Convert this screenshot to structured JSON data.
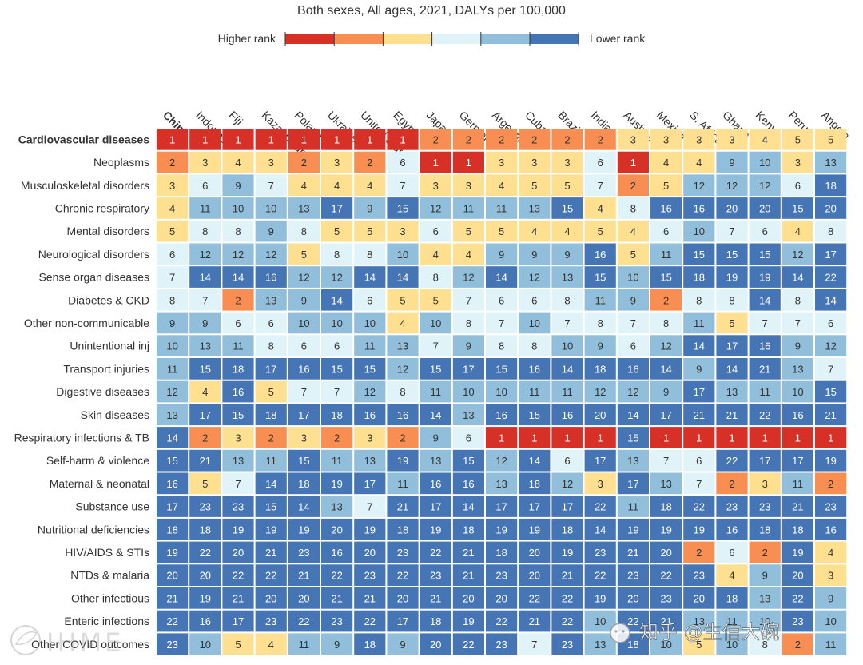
{
  "chart_data": {
    "type": "heatmap",
    "title": "Both sexes, All ages, 2021, DALYs per 100,000",
    "legend": {
      "left_label": "Higher rank",
      "right_label": "Lower rank",
      "colors": [
        "#d73027",
        "#f98e52",
        "#fee090",
        "#e0f3f8",
        "#91bfdb",
        "#4575b4"
      ]
    },
    "columns": [
      "China",
      "Indonesia",
      "Fiji",
      "Kazakhstan",
      "Poland",
      "Ukraine",
      "United States",
      "Egypt",
      "Japan",
      "Germany",
      "Argentina",
      "Cuba",
      "Brazil",
      "India",
      "Australia",
      "Mexico",
      "S. Africa",
      "Ghana",
      "Kenya",
      "Peru",
      "Angola"
    ],
    "highlight_column": "China",
    "highlight_row": "Cardiovascular diseases",
    "rows": [
      {
        "label": "Cardiovascular diseases",
        "values": [
          1,
          1,
          1,
          1,
          1,
          1,
          1,
          1,
          2,
          2,
          2,
          2,
          2,
          2,
          3,
          3,
          3,
          3,
          4,
          5,
          5
        ]
      },
      {
        "label": "Neoplasms",
        "values": [
          2,
          3,
          4,
          3,
          2,
          3,
          2,
          6,
          1,
          1,
          3,
          3,
          3,
          6,
          1,
          4,
          4,
          9,
          10,
          3,
          13
        ]
      },
      {
        "label": "Musculoskeletal disorders",
        "values": [
          3,
          6,
          9,
          7,
          4,
          4,
          4,
          7,
          3,
          3,
          4,
          5,
          5,
          7,
          2,
          5,
          12,
          12,
          12,
          6,
          18
        ]
      },
      {
        "label": "Chronic respiratory",
        "values": [
          4,
          11,
          10,
          10,
          13,
          17,
          9,
          15,
          12,
          11,
          11,
          13,
          15,
          4,
          8,
          16,
          16,
          20,
          20,
          15,
          20
        ]
      },
      {
        "label": "Mental disorders",
        "values": [
          5,
          8,
          8,
          9,
          8,
          5,
          5,
          3,
          6,
          5,
          5,
          4,
          4,
          5,
          4,
          6,
          10,
          7,
          6,
          4,
          8
        ]
      },
      {
        "label": "Neurological disorders",
        "values": [
          6,
          12,
          12,
          12,
          5,
          8,
          8,
          10,
          4,
          4,
          9,
          9,
          9,
          16,
          5,
          11,
          15,
          15,
          15,
          12,
          17
        ]
      },
      {
        "label": "Sense organ diseases",
        "values": [
          7,
          14,
          14,
          16,
          12,
          12,
          14,
          14,
          8,
          12,
          14,
          12,
          13,
          15,
          10,
          15,
          18,
          19,
          19,
          14,
          22
        ]
      },
      {
        "label": "Diabetes & CKD",
        "values": [
          8,
          7,
          2,
          13,
          9,
          14,
          6,
          5,
          5,
          7,
          6,
          6,
          8,
          11,
          9,
          2,
          8,
          8,
          14,
          8,
          14
        ]
      },
      {
        "label": "Other non-communicable",
        "values": [
          9,
          9,
          6,
          6,
          10,
          10,
          10,
          4,
          10,
          8,
          7,
          10,
          7,
          8,
          7,
          8,
          11,
          5,
          7,
          7,
          6
        ]
      },
      {
        "label": "Unintentional inj",
        "values": [
          10,
          13,
          11,
          8,
          6,
          6,
          11,
          13,
          7,
          9,
          8,
          8,
          10,
          9,
          6,
          12,
          14,
          17,
          16,
          9,
          12
        ]
      },
      {
        "label": "Transport injuries",
        "values": [
          11,
          15,
          18,
          17,
          16,
          15,
          15,
          12,
          15,
          17,
          15,
          16,
          14,
          18,
          16,
          14,
          9,
          14,
          21,
          13,
          7
        ]
      },
      {
        "label": "Digestive diseases",
        "values": [
          12,
          4,
          16,
          5,
          7,
          7,
          12,
          8,
          11,
          10,
          10,
          11,
          11,
          12,
          12,
          9,
          17,
          13,
          11,
          10,
          15
        ]
      },
      {
        "label": "Skin diseases",
        "values": [
          13,
          17,
          15,
          18,
          17,
          18,
          16,
          16,
          14,
          13,
          16,
          15,
          16,
          20,
          14,
          17,
          21,
          21,
          22,
          16,
          21
        ]
      },
      {
        "label": "Respiratory infections & TB",
        "values": [
          14,
          2,
          3,
          2,
          3,
          2,
          3,
          2,
          9,
          6,
          1,
          1,
          1,
          1,
          15,
          1,
          1,
          1,
          1,
          1,
          1
        ]
      },
      {
        "label": "Self-harm & violence",
        "values": [
          15,
          21,
          13,
          11,
          15,
          11,
          13,
          19,
          13,
          15,
          12,
          14,
          6,
          17,
          13,
          7,
          6,
          22,
          17,
          17,
          19
        ]
      },
      {
        "label": "Maternal & neonatal",
        "values": [
          16,
          5,
          7,
          14,
          18,
          19,
          17,
          11,
          16,
          16,
          13,
          18,
          12,
          3,
          17,
          13,
          7,
          2,
          3,
          11,
          2
        ]
      },
      {
        "label": "Substance use",
        "values": [
          17,
          23,
          23,
          15,
          14,
          13,
          7,
          21,
          17,
          14,
          17,
          17,
          17,
          22,
          11,
          18,
          22,
          23,
          23,
          21,
          23
        ]
      },
      {
        "label": "Nutritional deficiencies",
        "values": [
          18,
          18,
          19,
          19,
          19,
          20,
          19,
          18,
          19,
          18,
          19,
          19,
          18,
          14,
          19,
          19,
          19,
          16,
          18,
          18,
          16
        ]
      },
      {
        "label": "HIV/AIDS & STIs",
        "values": [
          19,
          22,
          20,
          21,
          23,
          16,
          20,
          23,
          22,
          21,
          18,
          20,
          19,
          23,
          21,
          20,
          2,
          6,
          2,
          19,
          4
        ]
      },
      {
        "label": "NTDs & malaria",
        "values": [
          20,
          20,
          22,
          22,
          21,
          22,
          23,
          22,
          23,
          21,
          23,
          20,
          21,
          22,
          23,
          22,
          23,
          4,
          9,
          20,
          3
        ]
      },
      {
        "label": "Other infectious",
        "values": [
          21,
          19,
          21,
          20,
          20,
          21,
          21,
          20,
          21,
          20,
          20,
          22,
          22,
          19,
          20,
          23,
          20,
          18,
          13,
          22,
          9
        ]
      },
      {
        "label": "Enteric infections",
        "values": [
          22,
          16,
          17,
          23,
          22,
          23,
          22,
          17,
          18,
          19,
          22,
          21,
          22,
          10,
          22,
          21,
          13,
          11,
          10,
          23,
          10
        ]
      },
      {
        "label": "Other COVID outcomes",
        "values": [
          23,
          10,
          5,
          4,
          11,
          9,
          18,
          9,
          20,
          22,
          23,
          7,
          23,
          13,
          18,
          10,
          5,
          10,
          8,
          2,
          11
        ]
      }
    ]
  },
  "watermarks": {
    "logo_text": "IHME",
    "overlay_text": "知乎 @生信大碗"
  }
}
